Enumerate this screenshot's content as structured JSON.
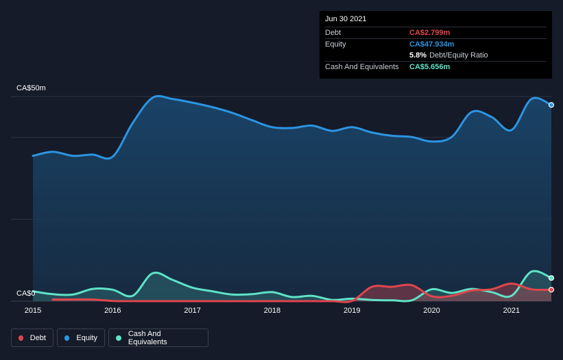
{
  "colors": {
    "debt": "#e0464c",
    "equity": "#2c95e3",
    "cash": "#5fe3c8",
    "ratio": "#ffffff"
  },
  "tooltip": {
    "date": "Jun 30 2021",
    "debt_label": "Debt",
    "debt_value": "CA$2.799m",
    "equity_label": "Equity",
    "equity_value": "CA$47.934m",
    "ratio_value": "5.8%",
    "ratio_label": "Debt/Equity Ratio",
    "cash_label": "Cash And Equivalents",
    "cash_value": "CA$5.656m"
  },
  "legend": {
    "debt": "Debt",
    "equity": "Equity",
    "cash": "Cash And Equivalents"
  },
  "chart_data": {
    "type": "area",
    "title": "",
    "xlabel": "",
    "ylabel": "",
    "y_top_label": "CA$50m",
    "y_bottom_label": "CA$0",
    "ylim": [
      0,
      50
    ],
    "xlim": [
      2015.0,
      2021.5
    ],
    "x_ticks": [
      2015,
      2016,
      2017,
      2018,
      2019,
      2020,
      2021
    ],
    "series": [
      {
        "name": "Equity",
        "key": "equity",
        "points": [
          [
            2015.0,
            35.5
          ],
          [
            2015.25,
            36.5
          ],
          [
            2015.5,
            35.5
          ],
          [
            2015.75,
            35.8
          ],
          [
            2016.0,
            35.3
          ],
          [
            2016.25,
            43.5
          ],
          [
            2016.5,
            49.7
          ],
          [
            2016.75,
            49.4
          ],
          [
            2017.0,
            48.5
          ],
          [
            2017.25,
            47.4
          ],
          [
            2017.5,
            46.0
          ],
          [
            2017.75,
            44.2
          ],
          [
            2018.0,
            42.5
          ],
          [
            2018.25,
            42.3
          ],
          [
            2018.5,
            42.9
          ],
          [
            2018.75,
            41.6
          ],
          [
            2019.0,
            42.5
          ],
          [
            2019.25,
            41.2
          ],
          [
            2019.5,
            40.4
          ],
          [
            2019.75,
            40.1
          ],
          [
            2020.0,
            39.0
          ],
          [
            2020.25,
            40.1
          ],
          [
            2020.5,
            46.2
          ],
          [
            2020.75,
            45.0
          ],
          [
            2021.0,
            41.8
          ],
          [
            2021.25,
            49.4
          ],
          [
            2021.5,
            47.934
          ]
        ]
      },
      {
        "name": "Cash And Equivalents",
        "key": "cash",
        "points": [
          [
            2015.0,
            2.4
          ],
          [
            2015.25,
            1.7
          ],
          [
            2015.5,
            1.6
          ],
          [
            2015.75,
            3.0
          ],
          [
            2016.0,
            2.8
          ],
          [
            2016.25,
            1.3
          ],
          [
            2016.5,
            6.8
          ],
          [
            2016.75,
            5.2
          ],
          [
            2017.0,
            3.3
          ],
          [
            2017.25,
            2.4
          ],
          [
            2017.5,
            1.6
          ],
          [
            2017.75,
            1.7
          ],
          [
            2018.0,
            2.2
          ],
          [
            2018.25,
            1.0
          ],
          [
            2018.5,
            1.3
          ],
          [
            2018.75,
            0.3
          ],
          [
            2019.0,
            0.6
          ],
          [
            2019.25,
            0.3
          ],
          [
            2019.5,
            0.2
          ],
          [
            2019.75,
            0.2
          ],
          [
            2020.0,
            2.9
          ],
          [
            2020.25,
            2.0
          ],
          [
            2020.5,
            3.0
          ],
          [
            2020.75,
            2.2
          ],
          [
            2021.0,
            1.3
          ],
          [
            2021.25,
            7.2
          ],
          [
            2021.5,
            5.656
          ]
        ]
      },
      {
        "name": "Debt",
        "key": "debt",
        "points": [
          [
            2015.25,
            0.4
          ],
          [
            2015.5,
            0.4
          ],
          [
            2015.75,
            0.4
          ],
          [
            2016.0,
            0.05
          ],
          [
            2016.25,
            0.0
          ],
          [
            2016.5,
            0.0
          ],
          [
            2016.75,
            0.0
          ],
          [
            2017.0,
            0.0
          ],
          [
            2017.25,
            0.0
          ],
          [
            2017.5,
            0.0
          ],
          [
            2017.75,
            0.0
          ],
          [
            2018.0,
            0.0
          ],
          [
            2018.25,
            0.0
          ],
          [
            2018.5,
            0.0
          ],
          [
            2018.75,
            0.0
          ],
          [
            2019.0,
            0.05
          ],
          [
            2019.25,
            3.5
          ],
          [
            2019.5,
            3.5
          ],
          [
            2019.75,
            3.9
          ],
          [
            2020.0,
            1.2
          ],
          [
            2020.25,
            1.3
          ],
          [
            2020.5,
            2.6
          ],
          [
            2020.75,
            2.9
          ],
          [
            2021.0,
            4.3
          ],
          [
            2021.25,
            2.9
          ],
          [
            2021.5,
            2.799
          ]
        ]
      }
    ]
  }
}
